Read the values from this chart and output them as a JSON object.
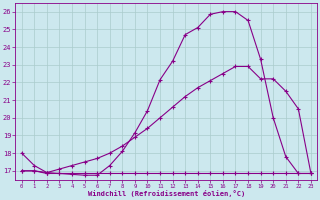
{
  "xlabel": "Windchill (Refroidissement éolien,°C)",
  "bg_color": "#cce8ee",
  "grid_color": "#aacccc",
  "line_color": "#880088",
  "xlim": [
    -0.5,
    23.5
  ],
  "ylim": [
    16.5,
    26.5
  ],
  "xticks": [
    0,
    1,
    2,
    3,
    4,
    5,
    6,
    7,
    8,
    9,
    10,
    11,
    12,
    13,
    14,
    15,
    16,
    17,
    18,
    19,
    20,
    21,
    22,
    23
  ],
  "yticks": [
    17,
    18,
    19,
    20,
    21,
    22,
    23,
    24,
    25,
    26
  ],
  "line1_x": [
    0,
    1,
    2,
    3,
    4,
    5,
    6,
    7,
    8,
    9,
    10,
    11,
    12,
    13,
    14,
    15,
    16,
    17,
    18,
    19,
    20,
    21,
    22,
    23
  ],
  "line1_y": [
    18.0,
    17.3,
    16.9,
    16.85,
    16.8,
    16.75,
    16.75,
    17.3,
    18.1,
    19.15,
    20.4,
    22.15,
    23.2,
    24.7,
    25.1,
    25.85,
    26.0,
    26.0,
    25.5,
    23.3,
    20.0,
    17.8,
    16.85,
    16.85
  ],
  "line2_x": [
    0,
    1,
    2,
    3,
    4,
    5,
    6,
    7,
    8,
    9,
    10,
    11,
    12,
    13,
    14,
    15,
    16,
    17,
    18,
    19,
    20,
    21,
    22,
    23
  ],
  "line2_y": [
    17.0,
    17.0,
    16.85,
    16.85,
    16.85,
    16.85,
    16.85,
    16.85,
    16.85,
    16.85,
    16.85,
    16.85,
    16.85,
    16.85,
    16.85,
    16.85,
    16.85,
    16.85,
    16.85,
    16.85,
    16.85,
    16.85,
    16.85,
    16.85
  ],
  "line3_x": [
    0,
    1,
    2,
    3,
    4,
    5,
    6,
    7,
    8,
    9,
    10,
    11,
    12,
    13,
    14,
    15,
    16,
    17,
    18,
    19,
    20,
    21,
    22,
    23
  ],
  "line3_y": [
    17.0,
    17.0,
    16.9,
    17.1,
    17.3,
    17.5,
    17.7,
    18.0,
    18.4,
    18.9,
    19.4,
    20.0,
    20.6,
    21.2,
    21.7,
    22.1,
    22.5,
    22.9,
    22.9,
    22.2,
    22.2,
    21.5,
    20.5,
    16.85
  ]
}
